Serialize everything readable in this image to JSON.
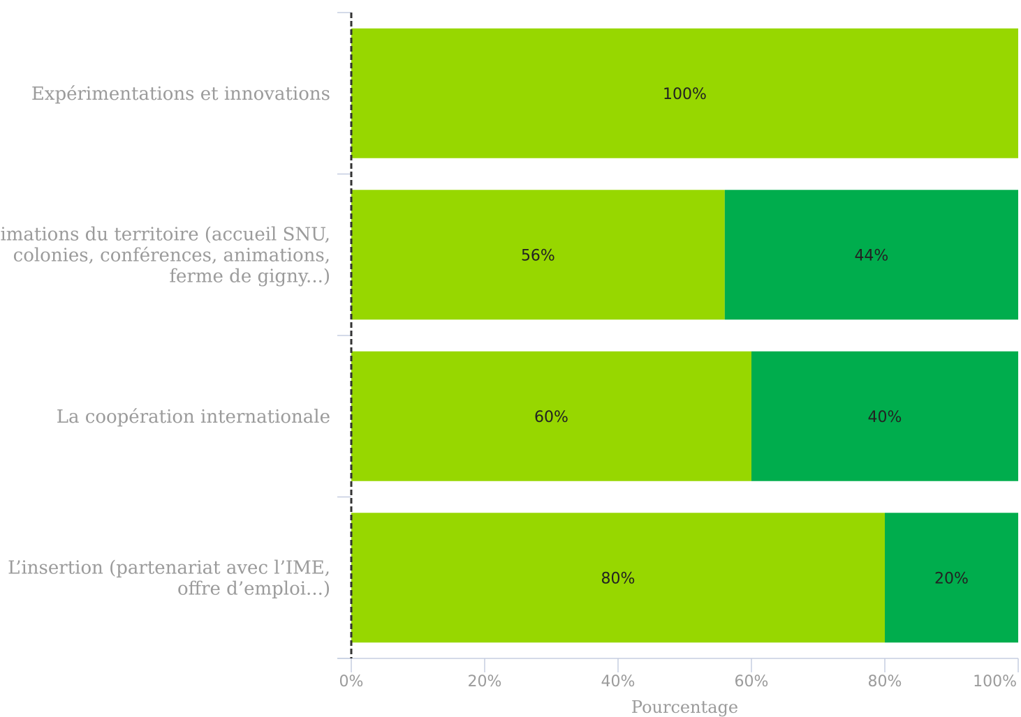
{
  "chart_data": {
    "type": "bar",
    "orientation": "horizontal",
    "stacked": true,
    "categories": [
      "Expérimentations et innovations",
      "Animations du territoire (accueil SNU, colonies, conférences, animations, ferme de gigny...)",
      "La coopération internationale",
      "L’insertion (partenariat avec l’IME, offre d’emploi...)"
    ],
    "category_lines": [
      [
        "Expérimentations et innovations"
      ],
      [
        "Animations du territoire (accueil SNU,",
        "colonies, conférences, animations,",
        "ferme de gigny...)"
      ],
      [
        "La coopération internationale"
      ],
      [
        "L’insertion (partenariat avec l’IME,",
        "offre d’emploi...)"
      ]
    ],
    "series": [
      {
        "color": "#97d700",
        "values": [
          100,
          56,
          60,
          80
        ]
      },
      {
        "color": "#00ad4d",
        "values": [
          0,
          44,
          40,
          20
        ]
      }
    ],
    "data_labels": [
      [
        "100%",
        "56%",
        "60%",
        "80%"
      ],
      [
        "",
        "44%",
        "40%",
        "20%"
      ]
    ],
    "xlabel": "Pourcentage",
    "xlim": [
      0,
      100
    ],
    "xticks": [
      0,
      20,
      40,
      60,
      80,
      100
    ],
    "xtick_labels": [
      "0%",
      "20%",
      "40%",
      "60%",
      "80%",
      "100%"
    ],
    "grid": false,
    "reference_line": {
      "x": 0,
      "style": "dashed"
    }
  }
}
